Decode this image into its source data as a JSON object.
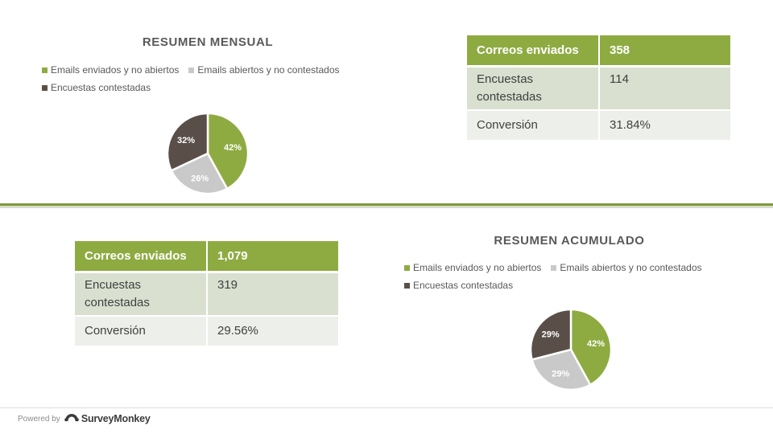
{
  "colors": {
    "green": "#8eab42",
    "gray": "#c9c9c9",
    "dark": "#594f48",
    "table_header": "#8eab42",
    "row_light": "#d9e0d0",
    "row_lighter": "#edf0ea"
  },
  "monthly": {
    "title": "RESUMEN MENSUAL",
    "legend": [
      {
        "label": "Emails enviados y no abiertos",
        "color": "#8eab42"
      },
      {
        "label": "Emails abiertos y no contestados",
        "color": "#c9c9c9"
      },
      {
        "label": "Encuestas contestadas",
        "color": "#594f48"
      }
    ],
    "table": {
      "header": {
        "label": "Correos enviados",
        "value": "358"
      },
      "rows": [
        {
          "label": "Encuestas contestadas",
          "value": "114"
        },
        {
          "label": "Conversión",
          "value": "31.84%"
        }
      ]
    }
  },
  "cumulative": {
    "title": "RESUMEN ACUMULADO",
    "legend": [
      {
        "label": "Emails enviados y no abiertos",
        "color": "#8eab42"
      },
      {
        "label": "Emails abiertos y no contestados",
        "color": "#c9c9c9"
      },
      {
        "label": "Encuestas contestadas",
        "color": "#594f48"
      }
    ],
    "table": {
      "header": {
        "label": "Correos enviados",
        "value": "1,079"
      },
      "rows": [
        {
          "label": "Encuestas contestadas",
          "value": "319"
        },
        {
          "label": "Conversión",
          "value": "29.56%"
        }
      ]
    }
  },
  "chart_data": [
    {
      "type": "pie",
      "title": "RESUMEN MENSUAL",
      "categories": [
        "Emails enviados y no abiertos",
        "Emails abiertos y no contestados",
        "Encuestas contestadas"
      ],
      "values": [
        42,
        26,
        32
      ],
      "labels": [
        "42%",
        "26%",
        "32%"
      ],
      "colors": [
        "#8eab42",
        "#c9c9c9",
        "#594f48"
      ],
      "legend_position": "top"
    },
    {
      "type": "pie",
      "title": "RESUMEN ACUMULADO",
      "categories": [
        "Emails enviados y no abiertos",
        "Emails abiertos y no contestados",
        "Encuestas contestadas"
      ],
      "values": [
        42,
        29,
        29
      ],
      "labels": [
        "42%",
        "29%",
        "29%"
      ],
      "colors": [
        "#8eab42",
        "#c9c9c9",
        "#594f48"
      ],
      "legend_position": "top"
    }
  ],
  "footer": {
    "powered_by": "Powered by",
    "brand": "SurveyMonkey"
  }
}
